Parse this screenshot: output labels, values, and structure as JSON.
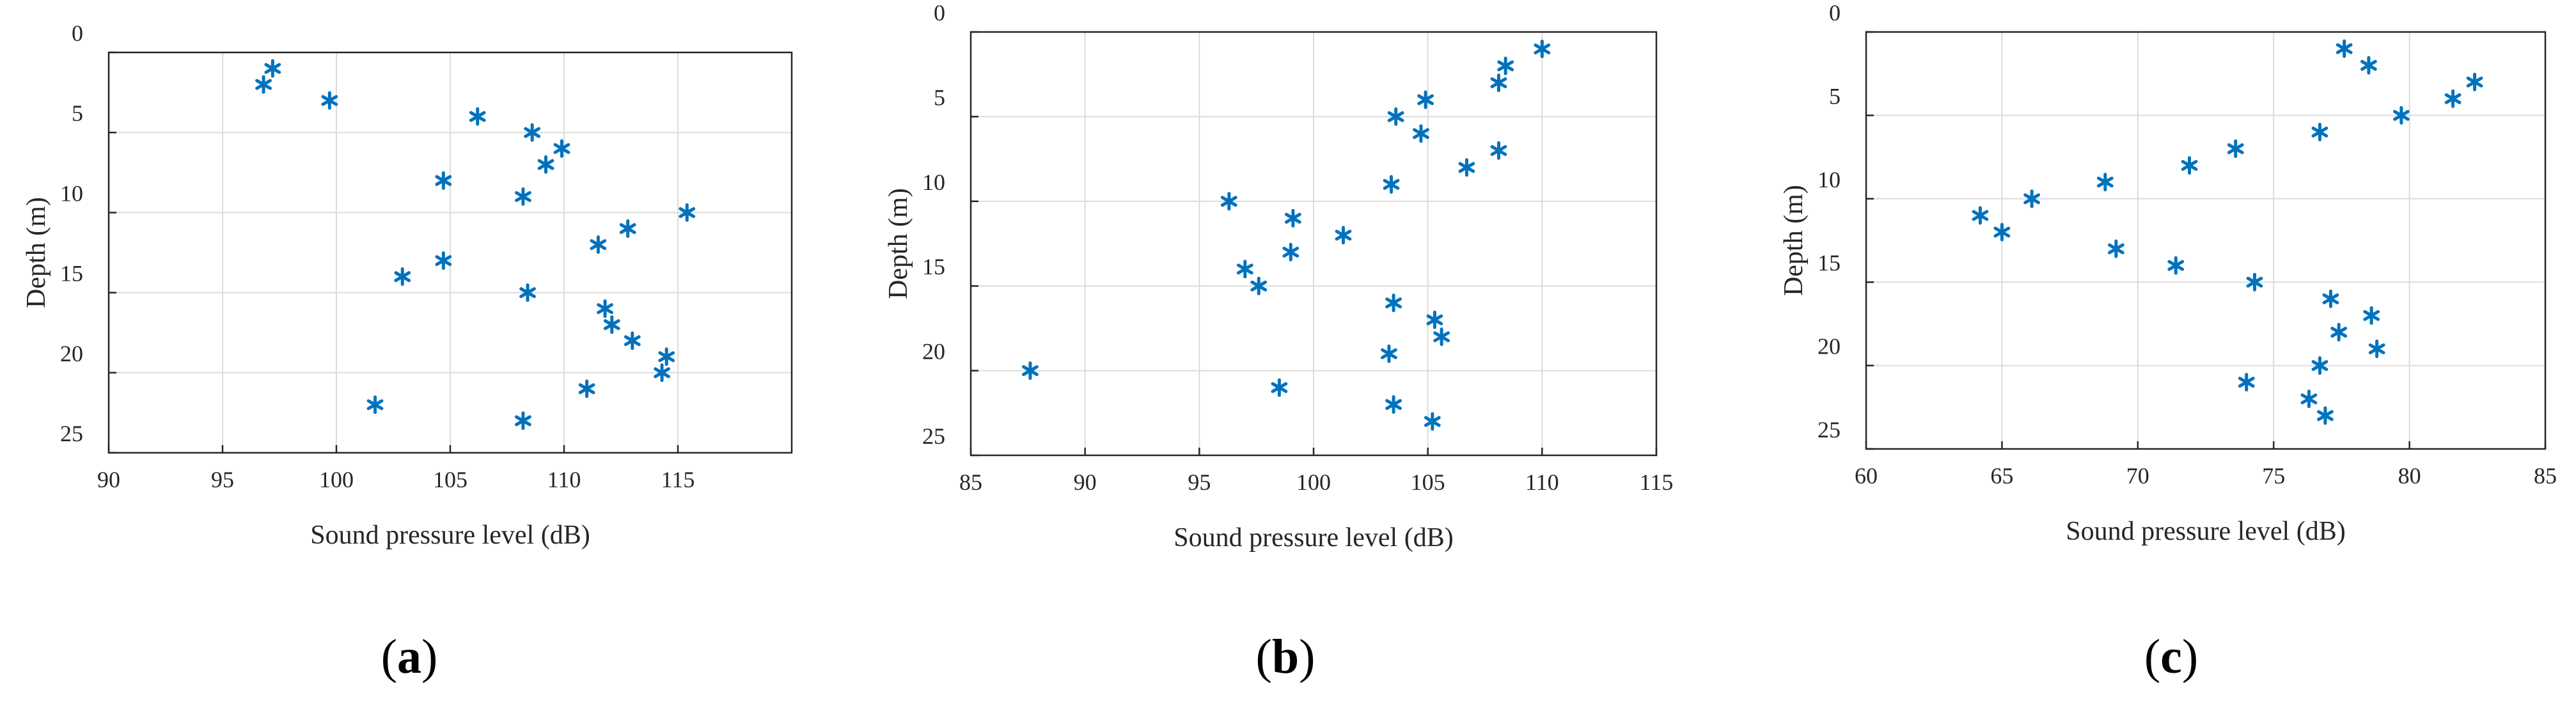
{
  "colors": {
    "marker": "#0072BD",
    "axis": "#262626",
    "grid": "#dcdcdc"
  },
  "chart_data": [
    {
      "type": "scatter",
      "panel_label": "a",
      "marker": "asterisk",
      "xlabel": "Sound pressure level (dB)",
      "ylabel": "Depth (m)",
      "xlim": [
        90,
        120
      ],
      "ylim": [
        0,
        25
      ],
      "y_reversed": true,
      "grid": true,
      "xticks": [
        90,
        95,
        100,
        105,
        110,
        115
      ],
      "yticks": [
        0,
        5,
        10,
        15,
        20,
        25
      ],
      "points": [
        {
          "x": 97.2,
          "y": 1
        },
        {
          "x": 96.8,
          "y": 2
        },
        {
          "x": 99.7,
          "y": 3
        },
        {
          "x": 106.2,
          "y": 4
        },
        {
          "x": 108.6,
          "y": 5
        },
        {
          "x": 109.9,
          "y": 6
        },
        {
          "x": 109.2,
          "y": 7
        },
        {
          "x": 104.7,
          "y": 8
        },
        {
          "x": 108.2,
          "y": 9
        },
        {
          "x": 115.4,
          "y": 10
        },
        {
          "x": 112.8,
          "y": 11
        },
        {
          "x": 111.5,
          "y": 12
        },
        {
          "x": 104.7,
          "y": 13
        },
        {
          "x": 102.9,
          "y": 14
        },
        {
          "x": 108.4,
          "y": 15
        },
        {
          "x": 111.8,
          "y": 16
        },
        {
          "x": 112.1,
          "y": 17
        },
        {
          "x": 113.0,
          "y": 18
        },
        {
          "x": 114.5,
          "y": 19
        },
        {
          "x": 114.3,
          "y": 20
        },
        {
          "x": 111.0,
          "y": 21
        },
        {
          "x": 101.7,
          "y": 22
        },
        {
          "x": 108.2,
          "y": 23
        }
      ]
    },
    {
      "type": "scatter",
      "panel_label": "b",
      "marker": "asterisk",
      "xlabel": "Sound pressure level (dB)",
      "ylabel": "Depth (m)",
      "xlim": [
        85,
        115
      ],
      "ylim": [
        0,
        25
      ],
      "y_reversed": true,
      "grid": true,
      "xticks": [
        85,
        90,
        95,
        100,
        105,
        110,
        115
      ],
      "yticks": [
        0,
        5,
        10,
        15,
        20,
        25
      ],
      "points": [
        {
          "x": 110.0,
          "y": 1
        },
        {
          "x": 108.4,
          "y": 2
        },
        {
          "x": 108.1,
          "y": 3
        },
        {
          "x": 104.9,
          "y": 4
        },
        {
          "x": 103.6,
          "y": 5
        },
        {
          "x": 104.7,
          "y": 6
        },
        {
          "x": 108.1,
          "y": 7
        },
        {
          "x": 106.7,
          "y": 8
        },
        {
          "x": 103.4,
          "y": 9
        },
        {
          "x": 96.3,
          "y": 10
        },
        {
          "x": 99.1,
          "y": 11
        },
        {
          "x": 101.3,
          "y": 12
        },
        {
          "x": 99.0,
          "y": 13
        },
        {
          "x": 97.0,
          "y": 14
        },
        {
          "x": 97.6,
          "y": 15
        },
        {
          "x": 103.5,
          "y": 16
        },
        {
          "x": 105.3,
          "y": 17
        },
        {
          "x": 105.6,
          "y": 18
        },
        {
          "x": 103.3,
          "y": 19
        },
        {
          "x": 87.6,
          "y": 20
        },
        {
          "x": 98.5,
          "y": 21
        },
        {
          "x": 103.5,
          "y": 22
        },
        {
          "x": 105.2,
          "y": 23
        }
      ]
    },
    {
      "type": "scatter",
      "panel_label": "c",
      "marker": "asterisk",
      "xlabel": "Sound pressure level (dB)",
      "ylabel": "Depth (m)",
      "xlim": [
        60,
        85
      ],
      "ylim": [
        0,
        25
      ],
      "y_reversed": true,
      "grid": true,
      "xticks": [
        60,
        65,
        70,
        75,
        80,
        85
      ],
      "yticks": [
        0,
        5,
        10,
        15,
        20,
        25
      ],
      "points": [
        {
          "x": 77.6,
          "y": 1
        },
        {
          "x": 78.5,
          "y": 2
        },
        {
          "x": 82.4,
          "y": 3
        },
        {
          "x": 81.6,
          "y": 4
        },
        {
          "x": 79.7,
          "y": 5
        },
        {
          "x": 76.7,
          "y": 6
        },
        {
          "x": 73.6,
          "y": 7
        },
        {
          "x": 71.9,
          "y": 8
        },
        {
          "x": 68.8,
          "y": 9
        },
        {
          "x": 66.1,
          "y": 10
        },
        {
          "x": 64.2,
          "y": 11
        },
        {
          "x": 65.0,
          "y": 12
        },
        {
          "x": 69.2,
          "y": 13
        },
        {
          "x": 71.4,
          "y": 14
        },
        {
          "x": 74.3,
          "y": 15
        },
        {
          "x": 77.1,
          "y": 16
        },
        {
          "x": 78.6,
          "y": 17
        },
        {
          "x": 77.4,
          "y": 18
        },
        {
          "x": 78.8,
          "y": 19
        },
        {
          "x": 76.7,
          "y": 20
        },
        {
          "x": 74.0,
          "y": 21
        },
        {
          "x": 76.3,
          "y": 22
        },
        {
          "x": 76.9,
          "y": 23
        }
      ]
    }
  ]
}
